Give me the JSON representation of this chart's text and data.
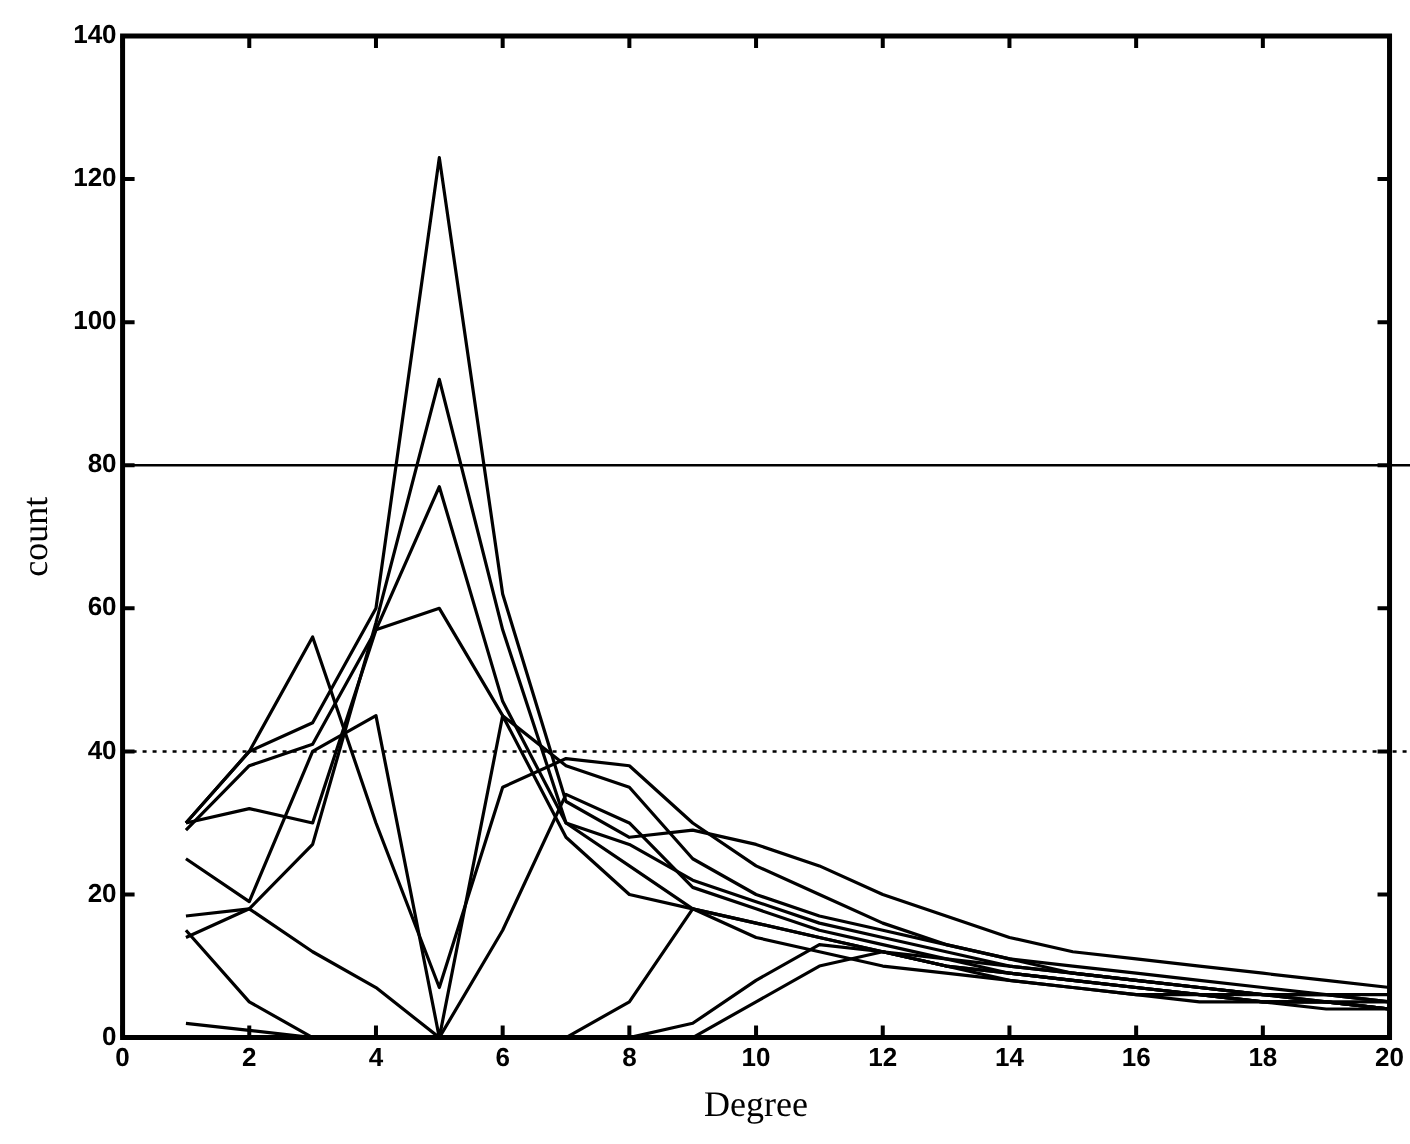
{
  "chart_data": {
    "type": "line",
    "xlabel": "Degree",
    "ylabel": "count",
    "x": [
      1,
      2,
      3,
      4,
      5,
      6,
      7,
      8,
      9,
      10,
      11,
      12,
      13,
      14,
      15,
      16,
      17,
      18,
      19,
      20
    ],
    "xlim": [
      0,
      20
    ],
    "xticks": [
      0,
      2,
      4,
      6,
      8,
      10,
      12,
      14,
      16,
      18,
      20
    ],
    "ylim": [
      0,
      140
    ],
    "yticks": [
      0,
      20,
      40,
      60,
      80,
      100,
      120,
      140
    ],
    "grid": false,
    "legend": false,
    "marker": "none",
    "line_style": "solid",
    "ref_lines": [
      {
        "axis": "y",
        "value": 80,
        "line_style": "solid",
        "color": "#000000"
      },
      {
        "axis": "y",
        "value": 40,
        "line_style": "dotted",
        "color": "#000000"
      }
    ],
    "series": [
      {
        "color": "#000000",
        "values": [
          30,
          40,
          44,
          60,
          123,
          62,
          33,
          28,
          29,
          27,
          24,
          20,
          17,
          14,
          12,
          11,
          10,
          9,
          8,
          7
        ]
      },
      {
        "color": "#000000",
        "values": [
          17,
          18,
          27,
          58,
          92,
          57,
          30,
          24,
          18,
          14,
          12,
          10,
          9,
          8,
          7,
          6,
          6,
          5,
          5,
          4
        ]
      },
      {
        "color": "#000000",
        "values": [
          29,
          38,
          41,
          57,
          77,
          47,
          30,
          27,
          22,
          19,
          16,
          14,
          12,
          10,
          9,
          8,
          7,
          6,
          6,
          5
        ]
      },
      {
        "color": "#000000",
        "values": [
          30,
          32,
          30,
          57,
          60,
          45,
          38,
          35,
          25,
          20,
          17,
          15,
          13,
          11,
          10,
          9,
          8,
          7,
          6,
          6
        ]
      },
      {
        "color": "#000000",
        "values": [
          30,
          40,
          56,
          30,
          7,
          35,
          39,
          38,
          30,
          24,
          20,
          16,
          13,
          11,
          9,
          8,
          7,
          6,
          6,
          5
        ]
      },
      {
        "color": "#000000",
        "values": [
          25,
          19,
          40,
          45,
          0,
          45,
          28,
          20,
          18,
          16,
          14,
          12,
          10,
          9,
          8,
          7,
          6,
          5,
          5,
          4
        ]
      },
      {
        "color": "#000000",
        "values": [
          15,
          5,
          0,
          0,
          0,
          0,
          0,
          5,
          18,
          16,
          14,
          12,
          10,
          8,
          7,
          6,
          5,
          5,
          4,
          4
        ]
      },
      {
        "color": "#000000",
        "values": [
          14,
          18,
          12,
          7,
          0,
          15,
          34,
          30,
          21,
          18,
          15,
          13,
          11,
          9,
          8,
          7,
          6,
          5,
          5,
          4
        ]
      },
      {
        "color": "#000000",
        "values": [
          0,
          0,
          0,
          0,
          0,
          0,
          0,
          0,
          0,
          5,
          10,
          12,
          11,
          10,
          9,
          8,
          7,
          6,
          5,
          5
        ]
      },
      {
        "color": "#000000",
        "values": [
          2,
          1,
          0,
          0,
          0,
          0,
          0,
          0,
          2,
          8,
          13,
          12,
          10,
          9,
          8,
          7,
          6,
          6,
          5,
          4
        ]
      }
    ]
  }
}
